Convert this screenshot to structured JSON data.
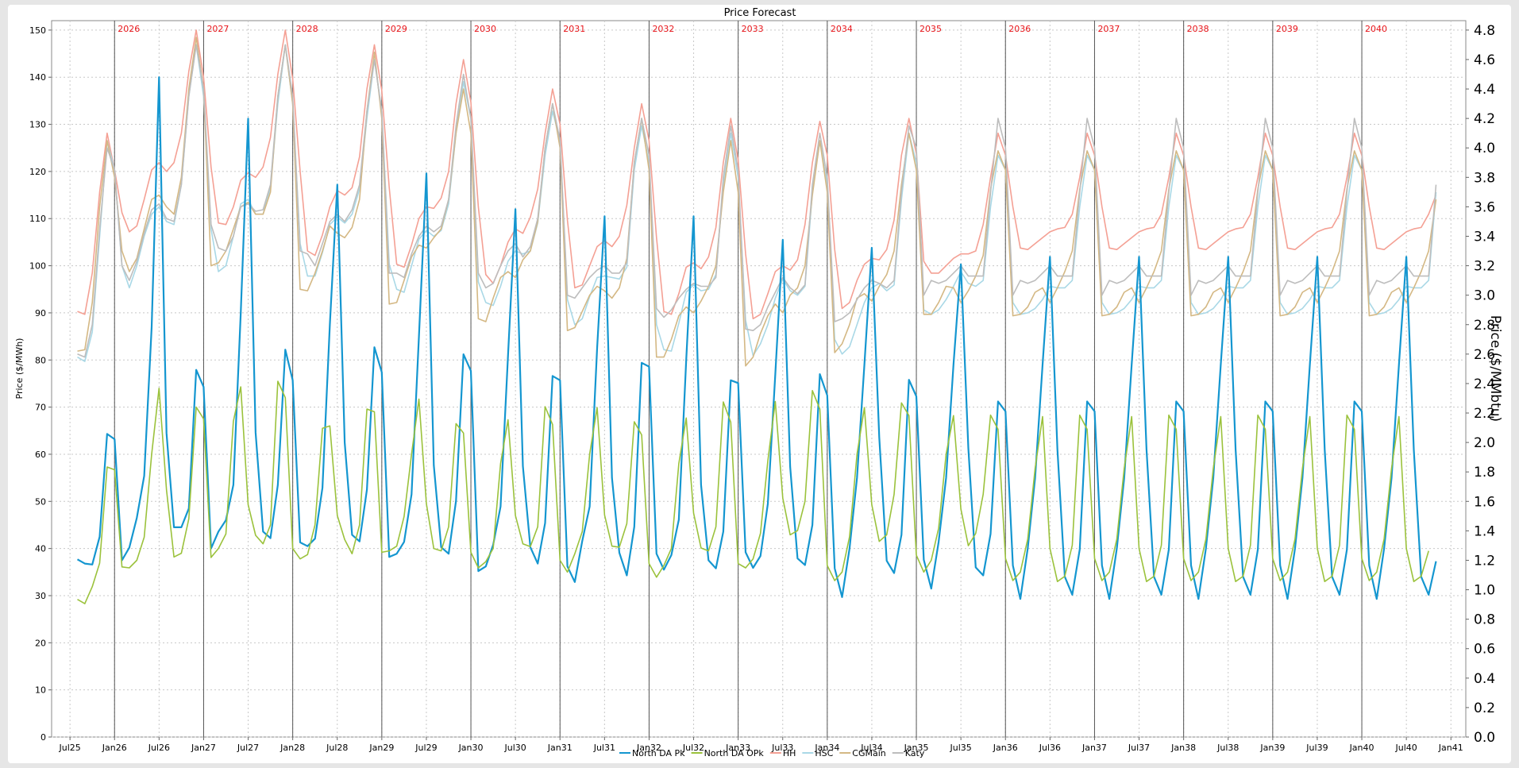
{
  "chart_data": {
    "type": "line",
    "title": "Price Forecast",
    "ylabel_left": "Price ($/MWh)",
    "ylabel_right": "Price ($/MMbtu)",
    "ylim_left": [
      0,
      152
    ],
    "ylim_right": [
      0,
      4.864
    ],
    "left_ticks": [
      "0",
      "10",
      "20",
      "30",
      "40",
      "50",
      "60",
      "70",
      "80",
      "90",
      "100",
      "110",
      "120",
      "130",
      "140",
      "150"
    ],
    "right_ticks": [
      "0.0",
      "0.2",
      "0.4",
      "0.6",
      "0.8",
      "1.0",
      "1.2",
      "1.4",
      "1.6",
      "1.8",
      "2.0",
      "2.2",
      "2.4",
      "2.6",
      "2.8",
      "3.0",
      "3.2",
      "3.4",
      "3.6",
      "3.8",
      "4.0",
      "4.2",
      "4.4",
      "4.6",
      "4.8"
    ],
    "x_start": "2025-08",
    "x_end": "2040-12",
    "x_ticks": [
      "Jul25",
      "Jan26",
      "Jul26",
      "Jan27",
      "Jul27",
      "Jan28",
      "Jul28",
      "Jan29",
      "Jul29",
      "Jan30",
      "Jul30",
      "Jan31",
      "Jul31",
      "Jan32",
      "Jul32",
      "Jan33",
      "Jul33",
      "Jan34",
      "Jul34",
      "Jan35",
      "Jul35",
      "Jan36",
      "Jul36",
      "Jan37",
      "Jul37",
      "Jan38",
      "Jul38",
      "Jan39",
      "Jul39",
      "Jan40",
      "Jul40",
      "Jan41"
    ],
    "year_markers": [
      "2026",
      "2027",
      "2028",
      "2029",
      "2030",
      "2031",
      "2032",
      "2033",
      "2034",
      "2035",
      "2036",
      "2037",
      "2038",
      "2039",
      "2040"
    ],
    "grid": true,
    "legend_position": "bottom",
    "series": [
      {
        "name": "North DA Pk",
        "axis": "left",
        "color": "#1496d0",
        "width": 2.2,
        "values": [
          37.7,
          36.8,
          36.6,
          42.5,
          64.3,
          63.2,
          37.5,
          40.2,
          46.5,
          55.4,
          87,
          140,
          64.5,
          44.5,
          44.5,
          48.5,
          77.9,
          74.3,
          40,
          43.6,
          46,
          53.5,
          90,
          131.2,
          64.6,
          43.6,
          42.2,
          53.5,
          82.2,
          75.7,
          41.3,
          40.5,
          42.1,
          52.9,
          87.5,
          117.2,
          62.5,
          42.9,
          41.5,
          52.5,
          82.7,
          77.4,
          38.2,
          38.9,
          41.4,
          51.5,
          85,
          119.6,
          57.7,
          40.3,
          38.9,
          50.1,
          81.2,
          77.7,
          35.2,
          36.2,
          40.8,
          48.9,
          81,
          112,
          57.5,
          40.3,
          36.8,
          45.4,
          76.6,
          75.7,
          36.2,
          32.9,
          41.6,
          48.9,
          82.5,
          110.5,
          55,
          39.1,
          34.3,
          44.6,
          79.4,
          78.6,
          38.9,
          35.5,
          38.6,
          46.1,
          80,
          110.5,
          53.5,
          37.5,
          35.8,
          43.6,
          75.7,
          75.1,
          39.2,
          35.9,
          38.4,
          49.5,
          77,
          105.5,
          57.4,
          37.9,
          36.5,
          45,
          77,
          72.5,
          35.8,
          29.7,
          40,
          55,
          79,
          103.8,
          63.6,
          37.4,
          34.8,
          42.9,
          75.8,
          72.3,
          37.6,
          31.5,
          41.4,
          55,
          79,
          100.3,
          61.3,
          36,
          34.3,
          43.1,
          71.2,
          69.1,
          36.4,
          29.3,
          40,
          55,
          79,
          101.9,
          61,
          34,
          30.2,
          39.8,
          71.2,
          69.1,
          36.4,
          29.3,
          40,
          55,
          79,
          101.9,
          61,
          34,
          30.2,
          39.8,
          71.2,
          69.1,
          36.4,
          29.3,
          40,
          55,
          79,
          101.9,
          61,
          34,
          30.2,
          39.8,
          71.2,
          69.1,
          36.4,
          29.3,
          40,
          55,
          79,
          101.9,
          61,
          34,
          30.2,
          39.8,
          71.2,
          69.1,
          36.4,
          29.3,
          40,
          55,
          79,
          101.9,
          61,
          34,
          30.2,
          37.3
        ]
      },
      {
        "name": "North DA OPk",
        "axis": "left",
        "color": "#9bc23c",
        "width": 1.6,
        "values": [
          29.2,
          28.3,
          31.9,
          36.9,
          57.3,
          56.7,
          36.1,
          35.9,
          37.5,
          42.4,
          60,
          74,
          52.4,
          38.2,
          39,
          46.3,
          70,
          67.5,
          38.1,
          40,
          43.1,
          67,
          74.3,
          49.3,
          42.8,
          41,
          45,
          75.5,
          72,
          40,
          37.8,
          38.7,
          45,
          65.5,
          66,
          47,
          41.9,
          38.9,
          45,
          69.6,
          69,
          39.2,
          39.5,
          40.5,
          46.8,
          60,
          71.7,
          49.5,
          40,
          39.5,
          44.6,
          66.5,
          64.5,
          39.2,
          35.9,
          37.2,
          40,
          58,
          67.3,
          47,
          41,
          40.4,
          44.6,
          70.1,
          66.3,
          37.5,
          35,
          38.9,
          43.6,
          60,
          69.9,
          47.1,
          40.5,
          40.3,
          45.3,
          66.9,
          64.1,
          36.8,
          33.9,
          36.4,
          40,
          58,
          67.7,
          47.5,
          40.1,
          39.5,
          44.6,
          71.1,
          66.8,
          36.8,
          35.9,
          37.8,
          43.2,
          58.6,
          71.2,
          50.7,
          42.9,
          43.8,
          50,
          73.5,
          69.6,
          36.4,
          33.2,
          35,
          42.5,
          60,
          69.9,
          49.3,
          41.5,
          42.9,
          51.5,
          70.9,
          68.2,
          38.6,
          35,
          37.5,
          44.3,
          60,
          68.2,
          48.4,
          40.6,
          43.2,
          51.5,
          68.3,
          65.3,
          37.9,
          33.2,
          35,
          42,
          57,
          68,
          40,
          33,
          34.1,
          40.7,
          68.3,
          65.3,
          37.9,
          33.2,
          35,
          42,
          57,
          68,
          40,
          33,
          34.1,
          40.7,
          68.3,
          65.3,
          37.9,
          33.2,
          35,
          42,
          57,
          68,
          40,
          33,
          34.1,
          40.7,
          68.3,
          65.3,
          37.9,
          33.2,
          35,
          42,
          57,
          68,
          40,
          33,
          34.1,
          40.7,
          68.3,
          65.3,
          37.9,
          33.2,
          35,
          42,
          57,
          68,
          40,
          33,
          34.1,
          39.5
        ]
      },
      {
        "name": "HH",
        "axis": "right",
        "color": "#f4a094",
        "width": 1.6,
        "values": [
          2.89,
          2.87,
          3.15,
          3.7,
          4.1,
          3.85,
          3.56,
          3.43,
          3.47,
          3.65,
          3.85,
          3.9,
          3.84,
          3.9,
          4.1,
          4.52,
          4.8,
          4.48,
          3.87,
          3.49,
          3.48,
          3.6,
          3.78,
          3.83,
          3.8,
          3.87,
          4.07,
          4.5,
          4.8,
          4.47,
          3.84,
          3.3,
          3.27,
          3.41,
          3.6,
          3.71,
          3.68,
          3.73,
          3.94,
          4.4,
          4.7,
          4.39,
          3.73,
          3.21,
          3.19,
          3.34,
          3.52,
          3.6,
          3.59,
          3.66,
          3.84,
          4.3,
          4.6,
          4.31,
          3.6,
          3.14,
          3.08,
          3.2,
          3.36,
          3.45,
          3.42,
          3.53,
          3.72,
          4.1,
          4.4,
          4.16,
          3.51,
          3.05,
          3.07,
          3.2,
          3.33,
          3.37,
          3.33,
          3.4,
          3.61,
          4,
          4.3,
          4.05,
          3.39,
          2.89,
          2.87,
          3.01,
          3.19,
          3.22,
          3.18,
          3.26,
          3.46,
          3.9,
          4.2,
          3.92,
          3.28,
          2.84,
          2.87,
          3.01,
          3.16,
          3.2,
          3.17,
          3.24,
          3.48,
          3.9,
          4.18,
          3.95,
          3.31,
          2.91,
          2.95,
          3.1,
          3.21,
          3.25,
          3.24,
          3.31,
          3.51,
          3.95,
          4.2,
          3.96,
          3.23,
          3.15,
          3.15,
          3.2,
          3.25,
          3.28,
          3.28,
          3.3,
          3.48,
          3.8,
          4.1,
          3.95,
          3.6,
          3.32,
          3.31,
          3.35,
          3.39,
          3.43,
          3.45,
          3.46,
          3.55,
          3.8,
          4.1,
          3.95,
          3.6,
          3.32,
          3.31,
          3.35,
          3.39,
          3.43,
          3.45,
          3.46,
          3.55,
          3.8,
          4.1,
          3.95,
          3.6,
          3.32,
          3.31,
          3.35,
          3.39,
          3.43,
          3.45,
          3.46,
          3.55,
          3.8,
          4.1,
          3.95,
          3.6,
          3.32,
          3.31,
          3.35,
          3.39,
          3.43,
          3.45,
          3.46,
          3.55,
          3.8,
          4.1,
          3.95,
          3.6,
          3.32,
          3.31,
          3.35,
          3.39,
          3.43,
          3.45,
          3.46,
          3.55,
          3.68
        ]
      },
      {
        "name": "HSC",
        "axis": "right",
        "color": "#a9d8e6",
        "width": 1.6,
        "values": [
          2.58,
          2.55,
          2.75,
          3.4,
          4.05,
          3.85,
          3.2,
          3.05,
          3.2,
          3.4,
          3.55,
          3.6,
          3.5,
          3.48,
          3.75,
          4.35,
          4.7,
          4.35,
          3.45,
          3.16,
          3.2,
          3.4,
          3.62,
          3.65,
          3.55,
          3.55,
          3.73,
          4.3,
          4.7,
          4.3,
          3.35,
          3.13,
          3.13,
          3.29,
          3.48,
          3.53,
          3.49,
          3.55,
          3.72,
          4.2,
          4.6,
          4.25,
          3.21,
          3.04,
          3.02,
          3.2,
          3.38,
          3.44,
          3.4,
          3.44,
          3.62,
          4.1,
          4.45,
          4.2,
          3.09,
          2.95,
          2.93,
          3.06,
          3.23,
          3.3,
          3.28,
          3.3,
          3.49,
          3.95,
          4.25,
          4.05,
          2.97,
          2.8,
          2.84,
          2.99,
          3.12,
          3.13,
          3.12,
          3.11,
          3.19,
          3.85,
          4.15,
          3.9,
          2.8,
          2.63,
          2.62,
          2.81,
          3.02,
          3.07,
          3.03,
          3.04,
          3.14,
          3.75,
          4.1,
          3.8,
          2.83,
          2.59,
          2.67,
          2.8,
          2.98,
          3.11,
          3.03,
          3.0,
          3.06,
          3.7,
          4.05,
          3.75,
          2.7,
          2.6,
          2.65,
          2.8,
          2.95,
          3.05,
          3.08,
          3.03,
          3.07,
          3.65,
          4.1,
          3.9,
          2.9,
          2.87,
          2.9,
          2.97,
          3.06,
          3.16,
          3.08,
          3.06,
          3.1,
          3.6,
          3.95,
          3.85,
          2.95,
          2.87,
          2.88,
          2.91,
          2.97,
          3.06,
          3.05,
          3.05,
          3.1,
          3.6,
          3.95,
          3.85,
          2.95,
          2.87,
          2.88,
          2.91,
          2.97,
          3.06,
          3.05,
          3.05,
          3.1,
          3.6,
          3.95,
          3.85,
          2.95,
          2.87,
          2.88,
          2.91,
          2.97,
          3.06,
          3.05,
          3.05,
          3.1,
          3.6,
          3.95,
          3.85,
          2.95,
          2.87,
          2.88,
          2.91,
          2.97,
          3.06,
          3.05,
          3.05,
          3.1,
          3.6,
          3.95,
          3.85,
          2.95,
          2.87,
          2.88,
          2.91,
          2.97,
          3.06,
          3.05,
          3.05,
          3.1,
          3.7
        ]
      },
      {
        "name": "CGMain",
        "axis": "right",
        "color": "#d4b884",
        "width": 1.6,
        "values": [
          2.62,
          2.63,
          2.95,
          3.6,
          4.05,
          3.8,
          3.3,
          3.16,
          3.25,
          3.45,
          3.65,
          3.68,
          3.6,
          3.55,
          3.8,
          4.4,
          4.75,
          4.4,
          3.2,
          3.22,
          3.3,
          3.45,
          3.6,
          3.63,
          3.55,
          3.55,
          3.7,
          4.35,
          4.7,
          4.3,
          3.04,
          3.03,
          3.15,
          3.3,
          3.47,
          3.42,
          3.39,
          3.46,
          3.65,
          4.25,
          4.65,
          4.2,
          2.94,
          2.95,
          3.1,
          3.26,
          3.34,
          3.32,
          3.39,
          3.45,
          3.65,
          4.1,
          4.4,
          4.1,
          2.84,
          2.82,
          2.98,
          3.12,
          3.16,
          3.12,
          3.24,
          3.3,
          3.5,
          4.0,
          4.3,
          4.0,
          2.76,
          2.78,
          2.89,
          3.0,
          3.06,
          3.03,
          2.98,
          3.05,
          3.25,
          3.9,
          4.2,
          3.85,
          2.58,
          2.58,
          2.7,
          2.86,
          2.92,
          2.88,
          2.96,
          3.06,
          3.2,
          3.7,
          4.05,
          3.7,
          2.52,
          2.58,
          2.74,
          2.86,
          2.94,
          2.88,
          3.0,
          3.05,
          3.2,
          3.68,
          4.05,
          3.7,
          2.61,
          2.67,
          2.8,
          2.98,
          3.01,
          2.96,
          3.06,
          3.14,
          3.3,
          3.75,
          4.1,
          3.85,
          2.87,
          2.87,
          2.95,
          3.06,
          3.05,
          2.95,
          3.03,
          3.13,
          3.27,
          3.72,
          3.98,
          3.85,
          2.86,
          2.87,
          2.92,
          3.02,
          3.05,
          2.95,
          3.05,
          3.16,
          3.3,
          3.72,
          3.98,
          3.85,
          2.86,
          2.87,
          2.92,
          3.02,
          3.05,
          2.95,
          3.05,
          3.16,
          3.3,
          3.72,
          3.98,
          3.85,
          2.86,
          2.87,
          2.92,
          3.02,
          3.05,
          2.95,
          3.05,
          3.16,
          3.3,
          3.72,
          3.98,
          3.85,
          2.86,
          2.87,
          2.92,
          3.02,
          3.05,
          2.95,
          3.05,
          3.16,
          3.3,
          3.72,
          3.98,
          3.85,
          2.86,
          2.87,
          2.92,
          3.02,
          3.05,
          2.95,
          3.05,
          3.16,
          3.3,
          3.65
        ]
      },
      {
        "name": "Katy",
        "axis": "right",
        "color": "#bdbdbd",
        "width": 1.6,
        "values": [
          2.6,
          2.58,
          2.8,
          3.45,
          4.0,
          3.85,
          3.2,
          3.1,
          3.23,
          3.42,
          3.58,
          3.62,
          3.52,
          3.5,
          3.75,
          4.35,
          4.7,
          4.4,
          3.48,
          3.32,
          3.3,
          3.4,
          3.6,
          3.62,
          3.57,
          3.58,
          3.75,
          4.35,
          4.7,
          4.35,
          3.3,
          3.28,
          3.2,
          3.35,
          3.5,
          3.55,
          3.5,
          3.58,
          3.75,
          4.25,
          4.6,
          4.25,
          3.15,
          3.15,
          3.12,
          3.28,
          3.4,
          3.47,
          3.43,
          3.47,
          3.65,
          4.15,
          4.5,
          4.2,
          3.15,
          3.05,
          3.08,
          3.2,
          3.3,
          3.35,
          3.26,
          3.33,
          3.52,
          4.0,
          4.3,
          4.05,
          3.0,
          2.98,
          3.05,
          3.12,
          3.17,
          3.2,
          3.15,
          3.15,
          3.22,
          3.9,
          4.2,
          3.95,
          2.91,
          2.85,
          2.9,
          2.98,
          3.04,
          3.08,
          3.06,
          3.06,
          3.12,
          3.8,
          4.15,
          3.85,
          2.77,
          2.76,
          2.8,
          2.92,
          3.02,
          3.12,
          3.05,
          3.01,
          3.07,
          3.75,
          4.1,
          3.8,
          2.82,
          2.84,
          2.88,
          2.97,
          3.05,
          3.1,
          3.08,
          3.05,
          3.1,
          3.7,
          4.15,
          4.0,
          3.0,
          3.1,
          3.08,
          3.1,
          3.15,
          3.2,
          3.13,
          3.13,
          3.13,
          3.7,
          4.2,
          4.0,
          3.0,
          3.1,
          3.08,
          3.1,
          3.15,
          3.2,
          3.13,
          3.13,
          3.13,
          3.7,
          4.2,
          4.0,
          3.0,
          3.1,
          3.08,
          3.1,
          3.15,
          3.2,
          3.13,
          3.13,
          3.13,
          3.7,
          4.2,
          4.0,
          3.0,
          3.1,
          3.08,
          3.1,
          3.15,
          3.2,
          3.13,
          3.13,
          3.13,
          3.7,
          4.2,
          4.0,
          3.0,
          3.1,
          3.08,
          3.1,
          3.15,
          3.2,
          3.13,
          3.13,
          3.13,
          3.7,
          4.2,
          4.0,
          3.0,
          3.1,
          3.08,
          3.1,
          3.15,
          3.2,
          3.13,
          3.13,
          3.13,
          3.75
        ]
      }
    ]
  }
}
